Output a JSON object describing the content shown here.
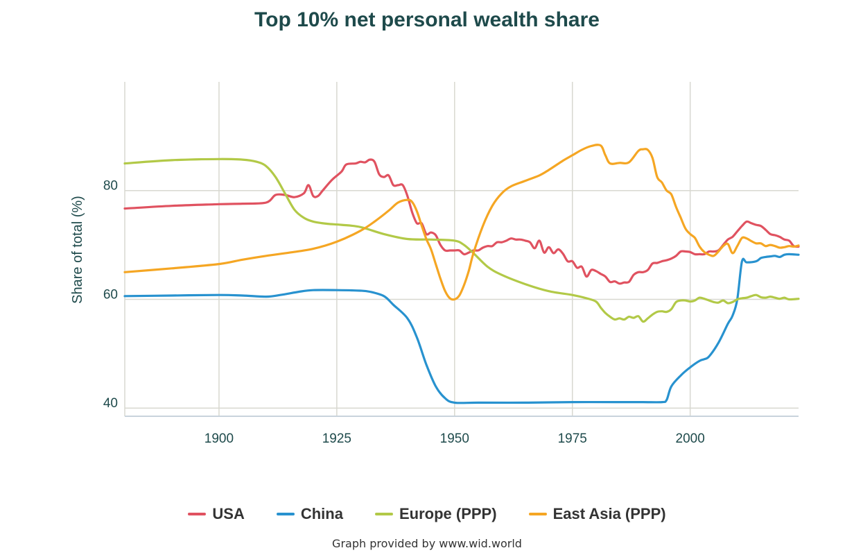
{
  "chart_data": {
    "type": "line",
    "title": "Top 10% net personal wealth share",
    "xlabel": "",
    "ylabel": "Share of total (%)",
    "xlim": [
      1880,
      2023
    ],
    "ylim": [
      38.5,
      100
    ],
    "x_ticks": [
      1900,
      1925,
      1950,
      1975,
      2000
    ],
    "y_ticks": [
      40,
      60,
      80
    ],
    "grid": true,
    "legend_position": "bottom-center",
    "series": [
      {
        "name": "USA",
        "color": "#e05260",
        "points": [
          [
            1880,
            76.7
          ],
          [
            1890,
            77.2
          ],
          [
            1900,
            77.5
          ],
          [
            1905,
            77.6
          ],
          [
            1910,
            77.8
          ],
          [
            1912,
            79.2
          ],
          [
            1914,
            79.2
          ],
          [
            1916,
            78.8
          ],
          [
            1918,
            79.5
          ],
          [
            1919,
            81.0
          ],
          [
            1920,
            79.0
          ],
          [
            1921,
            79.0
          ],
          [
            1922,
            80.0
          ],
          [
            1924,
            82.0
          ],
          [
            1926,
            83.5
          ],
          [
            1927,
            84.8
          ],
          [
            1929,
            85.0
          ],
          [
            1930,
            85.3
          ],
          [
            1931,
            85.2
          ],
          [
            1932,
            85.7
          ],
          [
            1933,
            85.3
          ],
          [
            1934,
            83.0
          ],
          [
            1935,
            82.5
          ],
          [
            1936,
            82.8
          ],
          [
            1937,
            81.0
          ],
          [
            1938,
            81.0
          ],
          [
            1939,
            81.0
          ],
          [
            1940,
            79.0
          ],
          [
            1941,
            76.0
          ],
          [
            1942,
            74.0
          ],
          [
            1943,
            74.0
          ],
          [
            1944,
            72.0
          ],
          [
            1945,
            72.3
          ],
          [
            1946,
            71.8
          ],
          [
            1947,
            70.0
          ],
          [
            1948,
            69.0
          ],
          [
            1949,
            69.0
          ],
          [
            1950,
            69.0
          ],
          [
            1951,
            69.0
          ],
          [
            1952,
            68.3
          ],
          [
            1953,
            68.6
          ],
          [
            1954,
            69.0
          ],
          [
            1955,
            69.0
          ],
          [
            1956,
            69.5
          ],
          [
            1957,
            69.8
          ],
          [
            1958,
            69.8
          ],
          [
            1959,
            70.5
          ],
          [
            1960,
            70.5
          ],
          [
            1961,
            70.8
          ],
          [
            1962,
            71.2
          ],
          [
            1963,
            71.0
          ],
          [
            1964,
            71.0
          ],
          [
            1965,
            70.8
          ],
          [
            1966,
            70.5
          ],
          [
            1967,
            69.4
          ],
          [
            1968,
            70.8
          ],
          [
            1969,
            68.6
          ],
          [
            1970,
            69.6
          ],
          [
            1971,
            68.5
          ],
          [
            1972,
            69.2
          ],
          [
            1973,
            68.4
          ],
          [
            1974,
            67.0
          ],
          [
            1975,
            67.0
          ],
          [
            1976,
            65.8
          ],
          [
            1977,
            66.0
          ],
          [
            1978,
            64.2
          ],
          [
            1979,
            65.4
          ],
          [
            1980,
            65.2
          ],
          [
            1981,
            64.7
          ],
          [
            1982,
            64.2
          ],
          [
            1983,
            63.2
          ],
          [
            1984,
            63.3
          ],
          [
            1985,
            62.9
          ],
          [
            1986,
            63.1
          ],
          [
            1987,
            63.2
          ],
          [
            1988,
            64.5
          ],
          [
            1989,
            65.0
          ],
          [
            1990,
            65.0
          ],
          [
            1991,
            65.4
          ],
          [
            1992,
            66.6
          ],
          [
            1993,
            66.7
          ],
          [
            1994,
            67.0
          ],
          [
            1995,
            67.2
          ],
          [
            1996,
            67.5
          ],
          [
            1997,
            68.0
          ],
          [
            1998,
            68.8
          ],
          [
            1999,
            68.8
          ],
          [
            2000,
            68.7
          ],
          [
            2001,
            68.3
          ],
          [
            2002,
            68.3
          ],
          [
            2003,
            68.3
          ],
          [
            2004,
            68.8
          ],
          [
            2005,
            68.8
          ],
          [
            2006,
            69.0
          ],
          [
            2007,
            70.0
          ],
          [
            2008,
            71.0
          ],
          [
            2009,
            71.5
          ],
          [
            2010,
            72.5
          ],
          [
            2011,
            73.5
          ],
          [
            2012,
            74.3
          ],
          [
            2013,
            74.0
          ],
          [
            2014,
            73.7
          ],
          [
            2015,
            73.5
          ],
          [
            2016,
            72.8
          ],
          [
            2017,
            72.0
          ],
          [
            2018,
            71.8
          ],
          [
            2019,
            71.5
          ],
          [
            2020,
            71.0
          ],
          [
            2021,
            70.8
          ],
          [
            2022,
            69.8
          ],
          [
            2023,
            69.7
          ]
        ]
      },
      {
        "name": "China",
        "color": "#2892cf",
        "points": [
          [
            1880,
            60.6
          ],
          [
            1890,
            60.7
          ],
          [
            1900,
            60.8
          ],
          [
            1905,
            60.7
          ],
          [
            1910,
            60.5
          ],
          [
            1913,
            60.8
          ],
          [
            1917,
            61.4
          ],
          [
            1920,
            61.7
          ],
          [
            1925,
            61.7
          ],
          [
            1930,
            61.6
          ],
          [
            1932,
            61.4
          ],
          [
            1935,
            60.6
          ],
          [
            1937,
            59.0
          ],
          [
            1940,
            56.5
          ],
          [
            1942,
            53.0
          ],
          [
            1944,
            48.0
          ],
          [
            1946,
            44.0
          ],
          [
            1948,
            41.8
          ],
          [
            1950,
            41.0
          ],
          [
            1955,
            41.0
          ],
          [
            1965,
            41.0
          ],
          [
            1975,
            41.1
          ],
          [
            1985,
            41.1
          ],
          [
            1990,
            41.1
          ],
          [
            1994,
            41.1
          ],
          [
            1995,
            41.5
          ],
          [
            1996,
            44.0
          ],
          [
            1998,
            46.0
          ],
          [
            2000,
            47.5
          ],
          [
            2002,
            48.7
          ],
          [
            2003,
            49.0
          ],
          [
            2004,
            49.5
          ],
          [
            2006,
            52.0
          ],
          [
            2008,
            55.5
          ],
          [
            2009,
            57.0
          ],
          [
            2010,
            60.0
          ],
          [
            2011,
            67.0
          ],
          [
            2012,
            66.8
          ],
          [
            2014,
            67.0
          ],
          [
            2015,
            67.6
          ],
          [
            2016,
            67.8
          ],
          [
            2017,
            67.9
          ],
          [
            2018,
            68.0
          ],
          [
            2019,
            67.8
          ],
          [
            2020,
            68.2
          ],
          [
            2021,
            68.3
          ],
          [
            2023,
            68.2
          ]
        ]
      },
      {
        "name": "Europe (PPP)",
        "color": "#b2c947",
        "points": [
          [
            1880,
            85.0
          ],
          [
            1890,
            85.6
          ],
          [
            1900,
            85.8
          ],
          [
            1905,
            85.7
          ],
          [
            1908,
            85.3
          ],
          [
            1910,
            84.5
          ],
          [
            1912,
            82.5
          ],
          [
            1914,
            79.5
          ],
          [
            1916,
            76.5
          ],
          [
            1918,
            75.0
          ],
          [
            1920,
            74.3
          ],
          [
            1923,
            73.9
          ],
          [
            1926,
            73.7
          ],
          [
            1930,
            73.3
          ],
          [
            1935,
            72.0
          ],
          [
            1940,
            71.1
          ],
          [
            1945,
            71.0
          ],
          [
            1950,
            70.8
          ],
          [
            1952,
            70.0
          ],
          [
            1954,
            68.5
          ],
          [
            1957,
            66.0
          ],
          [
            1960,
            64.5
          ],
          [
            1965,
            62.8
          ],
          [
            1970,
            61.5
          ],
          [
            1975,
            60.8
          ],
          [
            1978,
            60.2
          ],
          [
            1980,
            59.6
          ],
          [
            1981,
            58.5
          ],
          [
            1982,
            57.5
          ],
          [
            1983,
            56.8
          ],
          [
            1984,
            56.3
          ],
          [
            1985,
            56.5
          ],
          [
            1986,
            56.3
          ],
          [
            1987,
            56.8
          ],
          [
            1988,
            56.6
          ],
          [
            1989,
            56.9
          ],
          [
            1990,
            55.9
          ],
          [
            1991,
            56.5
          ],
          [
            1992,
            57.2
          ],
          [
            1993,
            57.7
          ],
          [
            1994,
            57.8
          ],
          [
            1995,
            57.7
          ],
          [
            1996,
            58.2
          ],
          [
            1997,
            59.5
          ],
          [
            1998,
            59.8
          ],
          [
            1999,
            59.8
          ],
          [
            2000,
            59.6
          ],
          [
            2001,
            59.8
          ],
          [
            2002,
            60.3
          ],
          [
            2003,
            60.1
          ],
          [
            2004,
            59.8
          ],
          [
            2005,
            59.5
          ],
          [
            2006,
            59.4
          ],
          [
            2007,
            59.8
          ],
          [
            2008,
            59.3
          ],
          [
            2009,
            59.5
          ],
          [
            2010,
            60.0
          ],
          [
            2011,
            60.2
          ],
          [
            2012,
            60.3
          ],
          [
            2013,
            60.6
          ],
          [
            2014,
            60.8
          ],
          [
            2015,
            60.4
          ],
          [
            2016,
            60.3
          ],
          [
            2017,
            60.5
          ],
          [
            2018,
            60.3
          ],
          [
            2019,
            60.1
          ],
          [
            2020,
            60.3
          ],
          [
            2021,
            60.0
          ],
          [
            2023,
            60.1
          ]
        ]
      },
      {
        "name": "East Asia (PPP)",
        "color": "#f5a623",
        "points": [
          [
            1880,
            65.0
          ],
          [
            1890,
            65.7
          ],
          [
            1900,
            66.5
          ],
          [
            1905,
            67.3
          ],
          [
            1910,
            68.0
          ],
          [
            1915,
            68.6
          ],
          [
            1920,
            69.3
          ],
          [
            1925,
            70.6
          ],
          [
            1930,
            72.6
          ],
          [
            1933,
            74.3
          ],
          [
            1936,
            76.3
          ],
          [
            1938,
            77.8
          ],
          [
            1940,
            78.3
          ],
          [
            1941,
            77.9
          ],
          [
            1942,
            76.2
          ],
          [
            1943,
            73.6
          ],
          [
            1944,
            71.1
          ],
          [
            1945,
            69.2
          ],
          [
            1946,
            66.5
          ],
          [
            1947,
            63.8
          ],
          [
            1948,
            61.5
          ],
          [
            1949,
            60.2
          ],
          [
            1950,
            60.0
          ],
          [
            1951,
            60.7
          ],
          [
            1952,
            62.6
          ],
          [
            1953,
            65.2
          ],
          [
            1954,
            68.5
          ],
          [
            1956,
            73.5
          ],
          [
            1958,
            77.2
          ],
          [
            1960,
            79.5
          ],
          [
            1962,
            80.8
          ],
          [
            1965,
            81.8
          ],
          [
            1968,
            82.8
          ],
          [
            1970,
            83.8
          ],
          [
            1973,
            85.5
          ],
          [
            1975,
            86.5
          ],
          [
            1977,
            87.5
          ],
          [
            1979,
            88.2
          ],
          [
            1981,
            88.3
          ],
          [
            1982,
            86.5
          ],
          [
            1983,
            85.0
          ],
          [
            1985,
            85.1
          ],
          [
            1987,
            85.2
          ],
          [
            1989,
            87.3
          ],
          [
            1990,
            87.6
          ],
          [
            1991,
            87.5
          ],
          [
            1992,
            86.0
          ],
          [
            1993,
            82.5
          ],
          [
            1994,
            81.5
          ],
          [
            1995,
            80.0
          ],
          [
            1996,
            79.3
          ],
          [
            1997,
            77.0
          ],
          [
            1998,
            75.0
          ],
          [
            1999,
            73.0
          ],
          [
            2000,
            72.0
          ],
          [
            2001,
            71.3
          ],
          [
            2002,
            69.7
          ],
          [
            2003,
            68.7
          ],
          [
            2004,
            68.2
          ],
          [
            2005,
            68.0
          ],
          [
            2006,
            68.8
          ],
          [
            2007,
            69.8
          ],
          [
            2008,
            70.2
          ],
          [
            2009,
            68.5
          ],
          [
            2010,
            69.8
          ],
          [
            2011,
            71.3
          ],
          [
            2012,
            71.2
          ],
          [
            2013,
            70.7
          ],
          [
            2014,
            70.3
          ],
          [
            2015,
            70.3
          ],
          [
            2016,
            69.8
          ],
          [
            2017,
            70.0
          ],
          [
            2018,
            69.8
          ],
          [
            2019,
            69.5
          ],
          [
            2020,
            69.6
          ],
          [
            2021,
            69.8
          ],
          [
            2022,
            69.7
          ],
          [
            2023,
            69.9
          ]
        ]
      }
    ]
  },
  "footer": {
    "credit": "Graph provided by www.wid.world"
  }
}
